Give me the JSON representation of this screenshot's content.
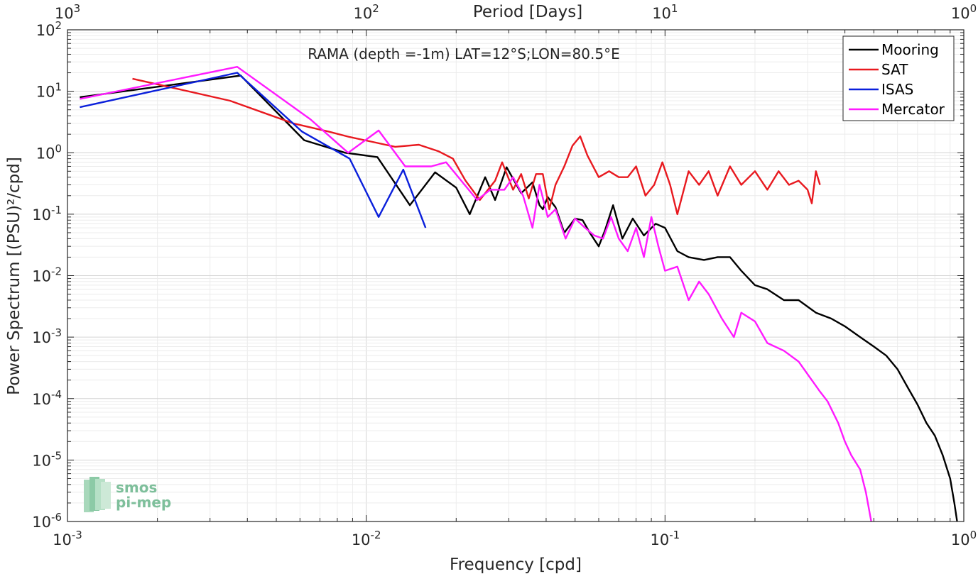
{
  "chart_data": {
    "type": "line",
    "title": "RAMA (depth =-1m) LAT=12°S;LON=80.5°E",
    "xlabel": "Frequency [cpd]",
    "ylabel": "Power Spectrum [(PSU)²/cpd]",
    "top_xlabel": "Period [Days]",
    "xscale": "log",
    "yscale": "log",
    "xlim": [
      0.001,
      1
    ],
    "ylim": [
      1e-06,
      100
    ],
    "x_ticks": [
      {
        "v": 0.001,
        "b": "10",
        "e": "-3"
      },
      {
        "v": 0.01,
        "b": "10",
        "e": "-2"
      },
      {
        "v": 0.1,
        "b": "10",
        "e": "-1"
      },
      {
        "v": 1,
        "b": "10",
        "e": "0"
      }
    ],
    "y_ticks": [
      {
        "v": 100,
        "b": "10",
        "e": "2"
      },
      {
        "v": 10,
        "b": "10",
        "e": "1"
      },
      {
        "v": 1,
        "b": "10",
        "e": "0"
      },
      {
        "v": 0.1,
        "b": "10",
        "e": "-1"
      },
      {
        "v": 0.01,
        "b": "10",
        "e": "-2"
      },
      {
        "v": 0.001,
        "b": "10",
        "e": "-3"
      },
      {
        "v": 0.0001,
        "b": "10",
        "e": "-4"
      },
      {
        "v": 1e-05,
        "b": "10",
        "e": "-5"
      },
      {
        "v": 1e-06,
        "b": "10",
        "e": "-6"
      }
    ],
    "top_ticks": [
      {
        "v": 0.001,
        "b": "10",
        "e": "3"
      },
      {
        "v": 0.01,
        "b": "10",
        "e": "2"
      },
      {
        "v": 0.1,
        "b": "10",
        "e": "1"
      },
      {
        "v": 1,
        "b": "10",
        "e": "0"
      }
    ],
    "grid": true,
    "legend_position": "top-right",
    "series": [
      {
        "name": "Mooring",
        "color": "#000000",
        "points": [
          [
            0.0011,
            8
          ],
          [
            0.0038,
            18
          ],
          [
            0.0062,
            1.6
          ],
          [
            0.0085,
            1.0
          ],
          [
            0.0109,
            0.85
          ],
          [
            0.014,
            0.14
          ],
          [
            0.017,
            0.48
          ],
          [
            0.02,
            0.27
          ],
          [
            0.0222,
            0.1
          ],
          [
            0.025,
            0.4
          ],
          [
            0.027,
            0.17
          ],
          [
            0.0295,
            0.58
          ],
          [
            0.033,
            0.22
          ],
          [
            0.036,
            0.33
          ],
          [
            0.038,
            0.14
          ],
          [
            0.039,
            0.12
          ],
          [
            0.0405,
            0.19
          ],
          [
            0.043,
            0.13
          ],
          [
            0.046,
            0.05
          ],
          [
            0.05,
            0.085
          ],
          [
            0.053,
            0.08
          ],
          [
            0.056,
            0.05
          ],
          [
            0.06,
            0.03
          ],
          [
            0.063,
            0.055
          ],
          [
            0.067,
            0.14
          ],
          [
            0.072,
            0.04
          ],
          [
            0.078,
            0.085
          ],
          [
            0.085,
            0.045
          ],
          [
            0.093,
            0.07
          ],
          [
            0.1,
            0.06
          ],
          [
            0.11,
            0.025
          ],
          [
            0.12,
            0.02
          ],
          [
            0.135,
            0.018
          ],
          [
            0.15,
            0.02
          ],
          [
            0.165,
            0.02
          ],
          [
            0.18,
            0.012
          ],
          [
            0.2,
            0.007
          ],
          [
            0.22,
            0.006
          ],
          [
            0.25,
            0.004
          ],
          [
            0.28,
            0.004
          ],
          [
            0.32,
            0.0025
          ],
          [
            0.36,
            0.002
          ],
          [
            0.4,
            0.0015
          ],
          [
            0.45,
            0.001
          ],
          [
            0.5,
            0.0007
          ],
          [
            0.55,
            0.0005
          ],
          [
            0.6,
            0.0003
          ],
          [
            0.65,
            0.00015
          ],
          [
            0.7,
            8e-05
          ],
          [
            0.75,
            4e-05
          ],
          [
            0.8,
            2.5e-05
          ],
          [
            0.85,
            1.2e-05
          ],
          [
            0.9,
            5e-06
          ],
          [
            0.93,
            2e-06
          ],
          [
            0.95,
            1e-06
          ]
        ]
      },
      {
        "name": "SAT",
        "color": "#e8191f",
        "points": [
          [
            0.00165,
            16
          ],
          [
            0.0035,
            7
          ],
          [
            0.0057,
            3
          ],
          [
            0.0075,
            2.2
          ],
          [
            0.0088,
            1.8
          ],
          [
            0.0105,
            1.5
          ],
          [
            0.0125,
            1.25
          ],
          [
            0.015,
            1.35
          ],
          [
            0.0175,
            1.05
          ],
          [
            0.0195,
            0.8
          ],
          [
            0.0215,
            0.35
          ],
          [
            0.024,
            0.17
          ],
          [
            0.027,
            0.35
          ],
          [
            0.0285,
            0.7
          ],
          [
            0.031,
            0.25
          ],
          [
            0.033,
            0.45
          ],
          [
            0.035,
            0.18
          ],
          [
            0.037,
            0.45
          ],
          [
            0.039,
            0.45
          ],
          [
            0.041,
            0.12
          ],
          [
            0.043,
            0.3
          ],
          [
            0.046,
            0.6
          ],
          [
            0.049,
            1.3
          ],
          [
            0.052,
            1.85
          ],
          [
            0.055,
            0.9
          ],
          [
            0.06,
            0.4
          ],
          [
            0.065,
            0.5
          ],
          [
            0.07,
            0.4
          ],
          [
            0.075,
            0.4
          ],
          [
            0.08,
            0.6
          ],
          [
            0.086,
            0.2
          ],
          [
            0.092,
            0.3
          ],
          [
            0.098,
            0.7
          ],
          [
            0.104,
            0.3
          ],
          [
            0.11,
            0.1
          ],
          [
            0.12,
            0.5
          ],
          [
            0.13,
            0.3
          ],
          [
            0.14,
            0.5
          ],
          [
            0.15,
            0.2
          ],
          [
            0.165,
            0.6
          ],
          [
            0.18,
            0.3
          ],
          [
            0.2,
            0.5
          ],
          [
            0.22,
            0.25
          ],
          [
            0.24,
            0.5
          ],
          [
            0.26,
            0.3
          ],
          [
            0.28,
            0.35
          ],
          [
            0.3,
            0.25
          ],
          [
            0.31,
            0.15
          ],
          [
            0.32,
            0.5
          ],
          [
            0.33,
            0.3
          ]
        ]
      },
      {
        "name": "ISAS",
        "color": "#0a1fdb",
        "points": [
          [
            0.0011,
            5.5
          ],
          [
            0.0037,
            20
          ],
          [
            0.0061,
            2.2
          ],
          [
            0.0088,
            0.8
          ],
          [
            0.011,
            0.09
          ],
          [
            0.0133,
            0.53
          ],
          [
            0.0158,
            0.06
          ]
        ]
      },
      {
        "name": "Mercator",
        "color": "#ff1aff",
        "points": [
          [
            0.0011,
            7.5
          ],
          [
            0.0037,
            25
          ],
          [
            0.0065,
            3.5
          ],
          [
            0.0087,
            1.0
          ],
          [
            0.011,
            2.3
          ],
          [
            0.0135,
            0.6
          ],
          [
            0.0165,
            0.6
          ],
          [
            0.0185,
            0.7
          ],
          [
            0.0235,
            0.17
          ],
          [
            0.026,
            0.25
          ],
          [
            0.029,
            0.25
          ],
          [
            0.031,
            0.4
          ],
          [
            0.0335,
            0.2
          ],
          [
            0.036,
            0.06
          ],
          [
            0.038,
            0.3
          ],
          [
            0.0405,
            0.09
          ],
          [
            0.043,
            0.12
          ],
          [
            0.0465,
            0.04
          ],
          [
            0.05,
            0.085
          ],
          [
            0.054,
            0.06
          ],
          [
            0.058,
            0.045
          ],
          [
            0.062,
            0.04
          ],
          [
            0.066,
            0.09
          ],
          [
            0.07,
            0.04
          ],
          [
            0.075,
            0.025
          ],
          [
            0.08,
            0.06
          ],
          [
            0.085,
            0.02
          ],
          [
            0.09,
            0.09
          ],
          [
            0.095,
            0.03
          ],
          [
            0.1,
            0.012
          ],
          [
            0.11,
            0.014
          ],
          [
            0.12,
            0.004
          ],
          [
            0.13,
            0.008
          ],
          [
            0.14,
            0.005
          ],
          [
            0.155,
            0.002
          ],
          [
            0.17,
            0.001
          ],
          [
            0.18,
            0.0025
          ],
          [
            0.2,
            0.0018
          ],
          [
            0.22,
            0.0008
          ],
          [
            0.25,
            0.0006
          ],
          [
            0.28,
            0.0004
          ],
          [
            0.3,
            0.00025
          ],
          [
            0.33,
            0.00013
          ],
          [
            0.35,
            9e-05
          ],
          [
            0.38,
            4e-05
          ],
          [
            0.4,
            2e-05
          ],
          [
            0.42,
            1.2e-05
          ],
          [
            0.45,
            7e-06
          ],
          [
            0.47,
            3e-06
          ],
          [
            0.49,
            1e-06
          ]
        ]
      }
    ]
  },
  "logo": {
    "line1": "smos",
    "line2": "pi-mep"
  }
}
